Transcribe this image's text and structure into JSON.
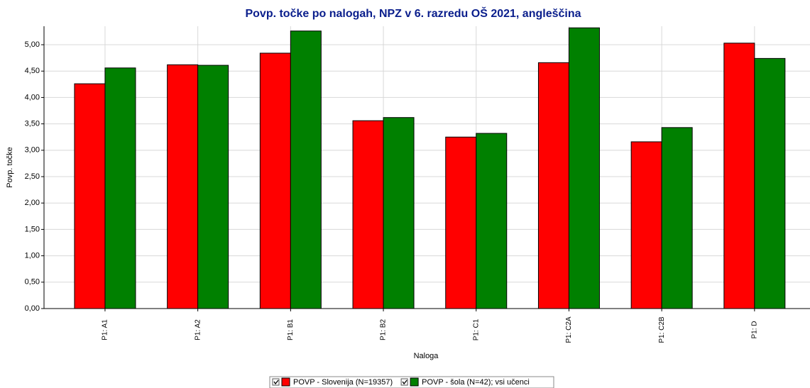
{
  "chart_data": {
    "type": "bar",
    "title": "Povp. točke po nalogah, NPZ v 6. razredu OŠ 2021, angleščina",
    "y_label": "Povp. točke",
    "x_label": "Naloga",
    "categories": [
      "P1: A1",
      "P1: A2",
      "P1: B1",
      "P1: B2",
      "P1: C1",
      "P1: C2A",
      "P1: C2B",
      "P1: D"
    ],
    "series": [
      {
        "name": "POVP - Slovenija (N=19357)",
        "color": "#ff0000",
        "values": [
          4.26,
          4.62,
          4.84,
          3.56,
          3.25,
          4.66,
          3.16,
          5.03
        ]
      },
      {
        "name": "POVP - šola (N=42); vsi učenci",
        "color": "#008000",
        "values": [
          4.56,
          4.61,
          5.26,
          3.62,
          3.32,
          5.32,
          3.43,
          4.74
        ]
      }
    ],
    "ylim": [
      0,
      5.35
    ],
    "yticks": [
      {
        "value": 0,
        "label": "0,00"
      },
      {
        "value": 0.5,
        "label": "0,50"
      },
      {
        "value": 1,
        "label": "1,00"
      },
      {
        "value": 1.5,
        "label": "1,50"
      },
      {
        "value": 2,
        "label": "2,00"
      },
      {
        "value": 2.5,
        "label": "2,50"
      },
      {
        "value": 3,
        "label": "3,00"
      },
      {
        "value": 3.5,
        "label": "3,50"
      },
      {
        "value": 4,
        "label": "4,00"
      },
      {
        "value": 4.5,
        "label": "4,50"
      },
      {
        "value": 5,
        "label": "5,00"
      }
    ],
    "grid": true
  }
}
